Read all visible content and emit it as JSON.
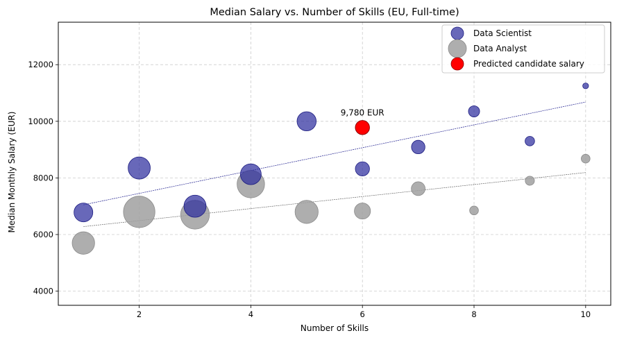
{
  "chart_data": {
    "type": "scatter",
    "title": "Median Salary vs. Number of Skills (EU, Full-time)",
    "xlabel": "Number of Skills",
    "ylabel": "Median Monthly Salary (EUR)",
    "xlim": [
      0.55,
      10.45
    ],
    "ylim": [
      3500,
      13500
    ],
    "xticks": [
      2,
      4,
      6,
      8,
      10
    ],
    "yticks": [
      4000,
      6000,
      8000,
      10000,
      12000
    ],
    "grid": true,
    "legend_position": "top-right",
    "series": [
      {
        "name": "Data Scientist",
        "color": "#2e2e9e",
        "points": [
          {
            "x": 1,
            "y": 6780,
            "size": 0.44
          },
          {
            "x": 2,
            "y": 8350,
            "size": 0.54
          },
          {
            "x": 3,
            "y": 7000,
            "size": 0.54
          },
          {
            "x": 4,
            "y": 8130,
            "size": 0.5
          },
          {
            "x": 5,
            "y": 10000,
            "size": 0.45
          },
          {
            "x": 6,
            "y": 8320,
            "size": 0.3
          },
          {
            "x": 7,
            "y": 9090,
            "size": 0.28
          },
          {
            "x": 8,
            "y": 10350,
            "size": 0.21
          },
          {
            "x": 9,
            "y": 9300,
            "size": 0.16
          },
          {
            "x": 10,
            "y": 11250,
            "size": 0.05
          }
        ],
        "trend": {
          "x": [
            1,
            10
          ],
          "y": [
            7050,
            10680
          ]
        }
      },
      {
        "name": "Data Analyst",
        "color": "#a0a0a0",
        "points": [
          {
            "x": 1,
            "y": 5700,
            "size": 0.55
          },
          {
            "x": 2,
            "y": 6800,
            "size": 0.82
          },
          {
            "x": 3,
            "y": 6700,
            "size": 0.74
          },
          {
            "x": 4,
            "y": 7780,
            "size": 0.7
          },
          {
            "x": 5,
            "y": 6800,
            "size": 0.57
          },
          {
            "x": 6,
            "y": 6830,
            "size": 0.36
          },
          {
            "x": 7,
            "y": 7620,
            "size": 0.29
          },
          {
            "x": 8,
            "y": 6850,
            "size": 0.14
          },
          {
            "x": 9,
            "y": 7900,
            "size": 0.15
          },
          {
            "x": 10,
            "y": 8680,
            "size": 0.14
          }
        ],
        "trend": {
          "x": [
            1,
            10
          ],
          "y": [
            6280,
            8190
          ]
        }
      },
      {
        "name": "Predicted candidate salary",
        "color": "#ff0000",
        "points": [
          {
            "x": 6,
            "y": 9780,
            "size": 0.3
          }
        ]
      }
    ],
    "annotations": [
      {
        "text": "9,780 EUR",
        "x": 6,
        "y": 10200
      }
    ]
  }
}
